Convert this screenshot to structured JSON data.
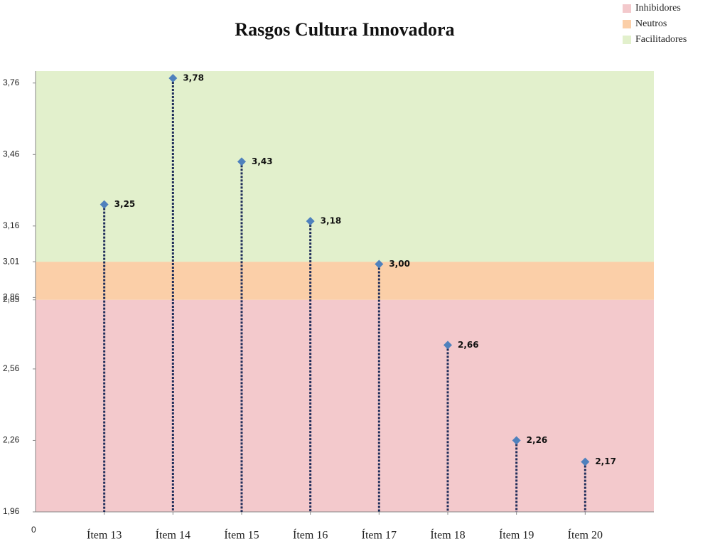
{
  "chart_data": {
    "type": "dropline",
    "title": "Rasgos Cultura Innovadora",
    "categories": [
      "Ítem 13",
      "Ítem 14",
      "Ítem 15",
      "Ítem 16",
      "Ítem 17",
      "Ítem 18",
      "Ítem 19",
      "Ítem 20"
    ],
    "values": [
      3.25,
      3.78,
      3.43,
      3.18,
      3.0,
      2.66,
      2.26,
      2.17
    ],
    "value_labels": [
      "3,25",
      "3,78",
      "3,43",
      "3,18",
      "3,00",
      "2,66",
      "2,26",
      "2,17"
    ],
    "color": "#4f81bd",
    "line_color": "#1f2d5a",
    "ylim": [
      1.96,
      3.81
    ],
    "yticks": [
      {
        "value": 1.96,
        "label": "1,96"
      },
      {
        "value": 2.26,
        "label": "2,26"
      },
      {
        "value": 2.56,
        "label": "2,56"
      },
      {
        "value": 2.85,
        "label": "2,85"
      },
      {
        "value": 2.86,
        "label": "2,86"
      },
      {
        "value": 3.01,
        "label": "3,01"
      },
      {
        "value": 3.16,
        "label": "3,16"
      },
      {
        "value": 3.46,
        "label": "3,46"
      },
      {
        "value": 3.76,
        "label": "3,76"
      }
    ],
    "xlim": [
      0,
      9
    ],
    "xticks": [
      0
    ],
    "bands": [
      {
        "name": "Inhibidores",
        "from": 1.96,
        "to": 2.85,
        "color": "#f3c9cc"
      },
      {
        "name": "Neutros",
        "from": 2.85,
        "to": 3.01,
        "color": "#fbcfa8"
      },
      {
        "name": "Facilitadores",
        "from": 3.01,
        "to": 3.81,
        "color": "#e2f0cc"
      }
    ],
    "legend": "top-right"
  }
}
